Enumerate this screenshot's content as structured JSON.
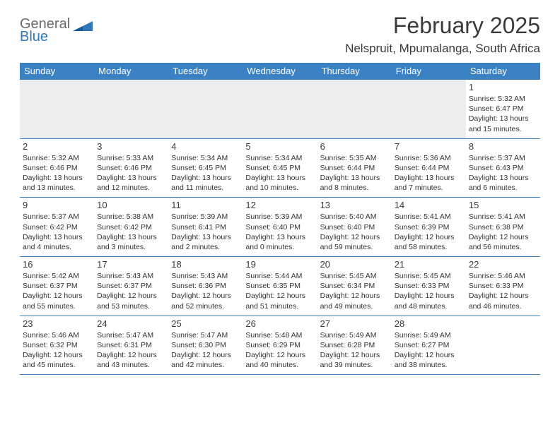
{
  "brand": {
    "word1": "General",
    "word2": "Blue"
  },
  "title": "February 2025",
  "location": "Nelspruit, Mpumalanga, South Africa",
  "colors": {
    "header_bg": "#3a82c4",
    "header_text": "#ffffff",
    "blank_bg": "#eceded",
    "border": "#3a82c4",
    "text": "#333333",
    "logo_gray": "#6a6a6a",
    "logo_blue": "#2e77b8"
  },
  "day_names": [
    "Sunday",
    "Monday",
    "Tuesday",
    "Wednesday",
    "Thursday",
    "Friday",
    "Saturday"
  ],
  "weeks": [
    [
      null,
      null,
      null,
      null,
      null,
      null,
      {
        "d": "1",
        "sr": "5:32 AM",
        "ss": "6:47 PM",
        "dl": "13 hours and 15 minutes."
      }
    ],
    [
      {
        "d": "2",
        "sr": "5:32 AM",
        "ss": "6:46 PM",
        "dl": "13 hours and 13 minutes."
      },
      {
        "d": "3",
        "sr": "5:33 AM",
        "ss": "6:46 PM",
        "dl": "13 hours and 12 minutes."
      },
      {
        "d": "4",
        "sr": "5:34 AM",
        "ss": "6:45 PM",
        "dl": "13 hours and 11 minutes."
      },
      {
        "d": "5",
        "sr": "5:34 AM",
        "ss": "6:45 PM",
        "dl": "13 hours and 10 minutes."
      },
      {
        "d": "6",
        "sr": "5:35 AM",
        "ss": "6:44 PM",
        "dl": "13 hours and 8 minutes."
      },
      {
        "d": "7",
        "sr": "5:36 AM",
        "ss": "6:44 PM",
        "dl": "13 hours and 7 minutes."
      },
      {
        "d": "8",
        "sr": "5:37 AM",
        "ss": "6:43 PM",
        "dl": "13 hours and 6 minutes."
      }
    ],
    [
      {
        "d": "9",
        "sr": "5:37 AM",
        "ss": "6:42 PM",
        "dl": "13 hours and 4 minutes."
      },
      {
        "d": "10",
        "sr": "5:38 AM",
        "ss": "6:42 PM",
        "dl": "13 hours and 3 minutes."
      },
      {
        "d": "11",
        "sr": "5:39 AM",
        "ss": "6:41 PM",
        "dl": "13 hours and 2 minutes."
      },
      {
        "d": "12",
        "sr": "5:39 AM",
        "ss": "6:40 PM",
        "dl": "13 hours and 0 minutes."
      },
      {
        "d": "13",
        "sr": "5:40 AM",
        "ss": "6:40 PM",
        "dl": "12 hours and 59 minutes."
      },
      {
        "d": "14",
        "sr": "5:41 AM",
        "ss": "6:39 PM",
        "dl": "12 hours and 58 minutes."
      },
      {
        "d": "15",
        "sr": "5:41 AM",
        "ss": "6:38 PM",
        "dl": "12 hours and 56 minutes."
      }
    ],
    [
      {
        "d": "16",
        "sr": "5:42 AM",
        "ss": "6:37 PM",
        "dl": "12 hours and 55 minutes."
      },
      {
        "d": "17",
        "sr": "5:43 AM",
        "ss": "6:37 PM",
        "dl": "12 hours and 53 minutes."
      },
      {
        "d": "18",
        "sr": "5:43 AM",
        "ss": "6:36 PM",
        "dl": "12 hours and 52 minutes."
      },
      {
        "d": "19",
        "sr": "5:44 AM",
        "ss": "6:35 PM",
        "dl": "12 hours and 51 minutes."
      },
      {
        "d": "20",
        "sr": "5:45 AM",
        "ss": "6:34 PM",
        "dl": "12 hours and 49 minutes."
      },
      {
        "d": "21",
        "sr": "5:45 AM",
        "ss": "6:33 PM",
        "dl": "12 hours and 48 minutes."
      },
      {
        "d": "22",
        "sr": "5:46 AM",
        "ss": "6:33 PM",
        "dl": "12 hours and 46 minutes."
      }
    ],
    [
      {
        "d": "23",
        "sr": "5:46 AM",
        "ss": "6:32 PM",
        "dl": "12 hours and 45 minutes."
      },
      {
        "d": "24",
        "sr": "5:47 AM",
        "ss": "6:31 PM",
        "dl": "12 hours and 43 minutes."
      },
      {
        "d": "25",
        "sr": "5:47 AM",
        "ss": "6:30 PM",
        "dl": "12 hours and 42 minutes."
      },
      {
        "d": "26",
        "sr": "5:48 AM",
        "ss": "6:29 PM",
        "dl": "12 hours and 40 minutes."
      },
      {
        "d": "27",
        "sr": "5:49 AM",
        "ss": "6:28 PM",
        "dl": "12 hours and 39 minutes."
      },
      {
        "d": "28",
        "sr": "5:49 AM",
        "ss": "6:27 PM",
        "dl": "12 hours and 38 minutes."
      },
      null
    ]
  ],
  "labels": {
    "sunrise": "Sunrise:",
    "sunset": "Sunset:",
    "daylight": "Daylight:"
  }
}
